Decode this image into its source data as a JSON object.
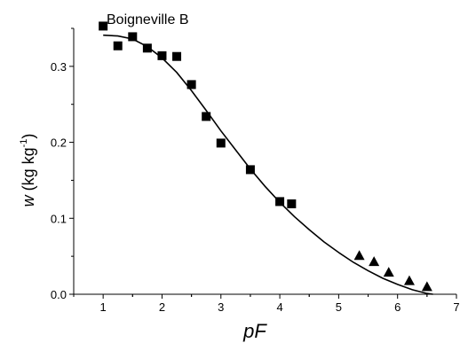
{
  "chart_data": {
    "type": "scatter",
    "title": "Boigneville B",
    "xlabel": "pF",
    "ylabel": {
      "symbol": "w",
      "unit_open": " (kg kg",
      "unit_sup": "-1",
      "unit_close": ")"
    },
    "xlim": [
      0.5,
      7
    ],
    "ylim": [
      0,
      0.35
    ],
    "xticks": [
      1,
      2,
      3,
      4,
      5,
      6,
      7
    ],
    "xtick_labels": [
      "1",
      "2",
      "3",
      "4",
      "5",
      "6",
      "7"
    ],
    "yticks": [
      0.0,
      0.1,
      0.2,
      0.3
    ],
    "ytick_labels": [
      "0.0",
      "0.1",
      "0.2",
      "0.3"
    ],
    "grid": false,
    "legend": "none",
    "series": [
      {
        "marker": "square",
        "color": "#000000",
        "x": [
          1.0,
          1.25,
          1.5,
          1.75,
          2.0,
          2.25,
          2.5,
          2.75,
          3.0,
          3.5,
          4.0,
          4.2
        ],
        "y": [
          0.353,
          0.327,
          0.339,
          0.324,
          0.314,
          0.313,
          0.276,
          0.234,
          0.199,
          0.164,
          0.122,
          0.119
        ]
      },
      {
        "marker": "triangle",
        "color": "#000000",
        "x": [
          5.35,
          5.6,
          5.85,
          6.2,
          6.5
        ],
        "y": [
          0.051,
          0.043,
          0.029,
          0.018,
          0.01
        ]
      },
      {
        "marker": "line",
        "color": "#000000",
        "x": [
          1.0,
          1.25,
          1.5,
          1.75,
          2.0,
          2.25,
          2.5,
          2.75,
          3.0,
          3.25,
          3.5,
          3.75,
          4.0,
          4.25,
          4.5,
          4.75,
          5.0,
          5.25,
          5.5,
          5.75,
          6.0,
          6.25,
          6.5,
          6.6
        ],
        "y": [
          0.341,
          0.34,
          0.336,
          0.326,
          0.311,
          0.292,
          0.268,
          0.242,
          0.215,
          0.19,
          0.165,
          0.142,
          0.121,
          0.102,
          0.085,
          0.069,
          0.055,
          0.042,
          0.031,
          0.021,
          0.013,
          0.006,
          0.001,
          0.0
        ]
      }
    ]
  }
}
